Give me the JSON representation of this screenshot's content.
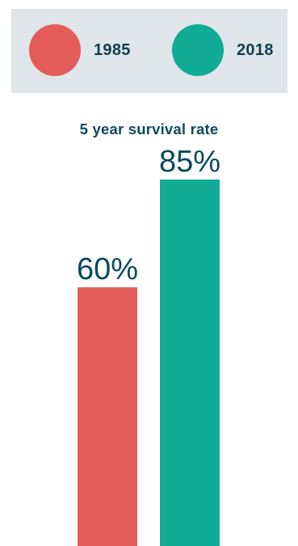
{
  "chart_data": {
    "type": "bar",
    "title": "5 year survival rate",
    "categories": [
      "1985",
      "2018"
    ],
    "series": [
      {
        "name": "1985",
        "value": 60,
        "label": "60%",
        "color": "#e45c5a"
      },
      {
        "name": "2018",
        "value": 85,
        "label": "85%",
        "color": "#11ab96"
      }
    ],
    "ylim": [
      0,
      100
    ],
    "grid": false,
    "legend_position": "top"
  }
}
